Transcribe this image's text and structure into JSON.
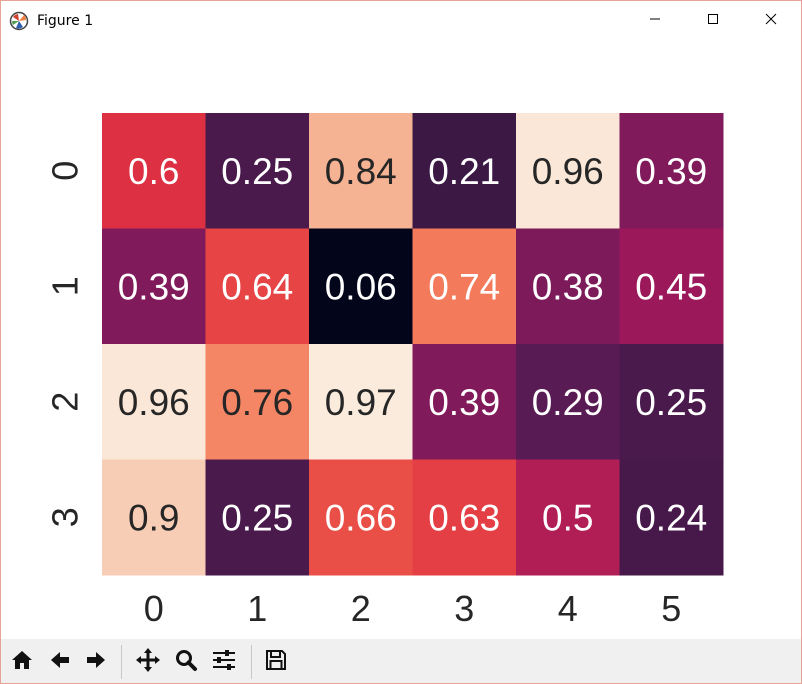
{
  "window": {
    "title": "Figure 1"
  },
  "icons": {
    "app": "matplotlib-logo-icon",
    "minimize": "minimize-icon",
    "maximize": "maximize-icon",
    "close": "close-icon",
    "home": "home-icon",
    "back": "arrow-left-icon",
    "forward": "arrow-right-icon",
    "pan": "move-arrows-icon",
    "zoom": "magnifier-icon",
    "configure": "sliders-icon",
    "save": "floppy-disk-icon"
  },
  "chart_data": {
    "type": "heatmap",
    "title": "",
    "xlabel": "",
    "ylabel": "",
    "x_ticks": [
      "0",
      "1",
      "2",
      "3",
      "4",
      "5"
    ],
    "y_ticks": [
      "0",
      "1",
      "2",
      "3"
    ],
    "values": [
      [
        0.6,
        0.25,
        0.84,
        0.21,
        0.96,
        0.39
      ],
      [
        0.39,
        0.64,
        0.06,
        0.74,
        0.38,
        0.45
      ],
      [
        0.96,
        0.76,
        0.97,
        0.39,
        0.29,
        0.25
      ],
      [
        0.9,
        0.25,
        0.66,
        0.63,
        0.5,
        0.24
      ]
    ],
    "labels": [
      [
        "0.6",
        "0.25",
        "0.84",
        "0.21",
        "0.96",
        "0.39"
      ],
      [
        "0.39",
        "0.64",
        "0.06",
        "0.74",
        "0.38",
        "0.45"
      ],
      [
        "0.96",
        "0.76",
        "0.97",
        "0.39",
        "0.29",
        "0.25"
      ],
      [
        "0.9",
        "0.25",
        "0.66",
        "0.63",
        "0.5",
        "0.24"
      ]
    ],
    "colormap": "rocket",
    "colorbar": false,
    "annotations": true
  }
}
